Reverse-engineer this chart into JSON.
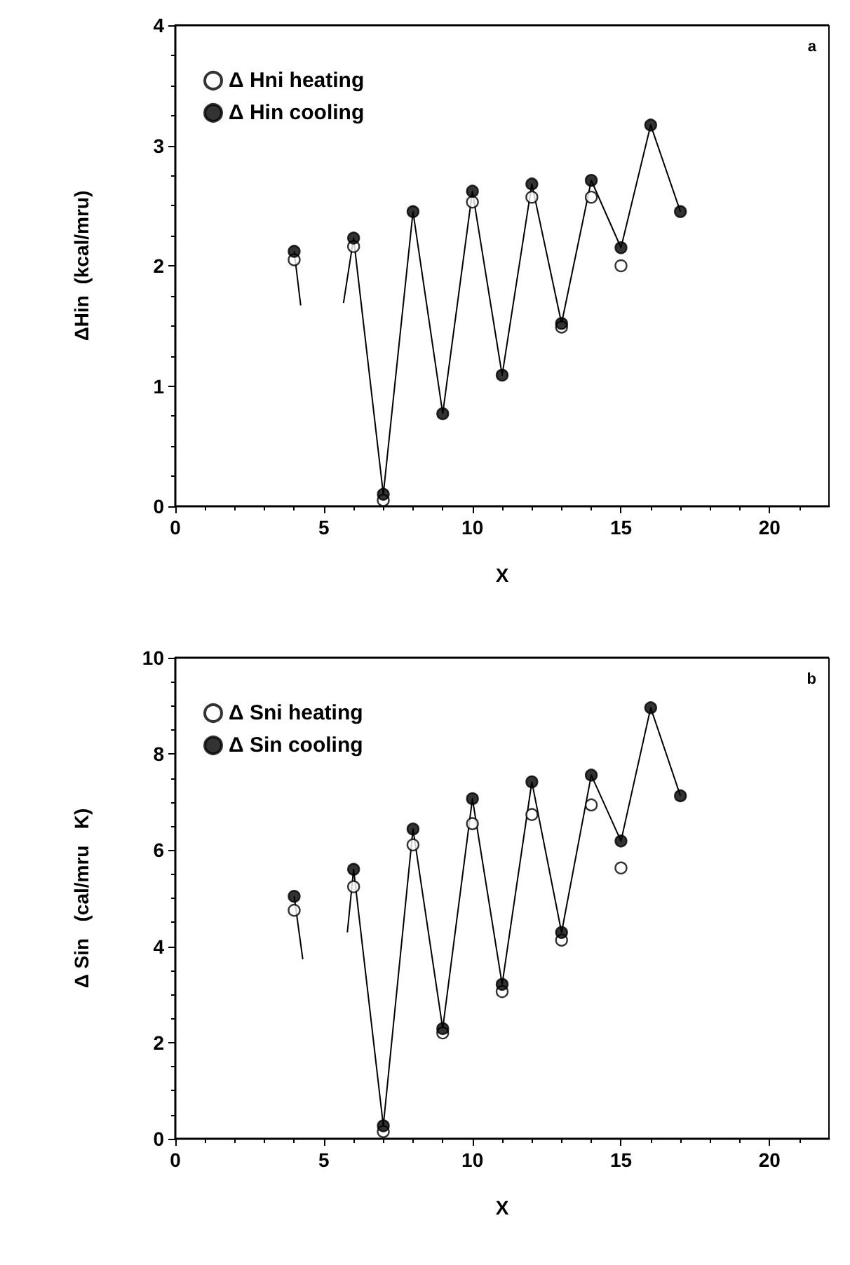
{
  "chart_data": [
    {
      "type": "scatter",
      "xlabel": "X",
      "ylabel": "ΔHin  (kcal/mru)",
      "annotations": [
        "a"
      ],
      "xlim": [
        0,
        22
      ],
      "xticks": [
        0,
        5,
        10,
        15,
        20
      ],
      "ylim": [
        0,
        4
      ],
      "yticks": [
        0,
        1,
        2,
        3,
        4
      ],
      "grid": false,
      "legend": "top left",
      "marker": "circle",
      "x": [
        4,
        6,
        7,
        8,
        9,
        10,
        11,
        12,
        13,
        14,
        15,
        16,
        17
      ],
      "series": [
        {
          "type": "line",
          "color": "#000000",
          "line_style": "solid",
          "marker": "none",
          "x": [
            4,
            4.22,
            5,
            5.66,
            6,
            7,
            8,
            9,
            10,
            11,
            12,
            13,
            14,
            15,
            16,
            17
          ],
          "values": [
            2.12,
            1.67,
            null,
            1.69,
            2.23,
            0.1,
            2.45,
            0.77,
            2.62,
            1.09,
            2.68,
            1.52,
            2.71,
            2.15,
            3.17,
            2.45
          ]
        },
        {
          "name": "Δ Hin cooling",
          "color": "#000000",
          "values": [
            2.12,
            2.23,
            0.1,
            2.45,
            0.77,
            2.62,
            1.09,
            2.68,
            1.52,
            2.71,
            2.15,
            3.17,
            2.45
          ]
        },
        {
          "name": "Δ Hni heating",
          "color": "#ffffff",
          "values": [
            2.05,
            2.16,
            0.05,
            null,
            null,
            2.53,
            null,
            2.57,
            1.49,
            2.57,
            2.0,
            null,
            null
          ]
        }
      ]
    },
    {
      "type": "scatter",
      "xlabel": "X",
      "ylabel": "Δ Sin   (cal/mru   K)",
      "annotations": [
        "b"
      ],
      "xlim": [
        0,
        22
      ],
      "xticks": [
        0,
        5,
        10,
        15,
        20
      ],
      "ylim": [
        0,
        10
      ],
      "yticks": [
        0,
        2,
        4,
        6,
        8,
        10
      ],
      "grid": false,
      "legend": "top left",
      "marker": "circle",
      "x": [
        4,
        6,
        7,
        8,
        9,
        10,
        11,
        12,
        13,
        14,
        15,
        16,
        17
      ],
      "series": [
        {
          "type": "line",
          "color": "#000000",
          "line_style": "solid",
          "marker": "none",
          "x": [
            4,
            4.29,
            5,
            5.79,
            6,
            7,
            8,
            9,
            10,
            11,
            12,
            13,
            14,
            15,
            16,
            17
          ],
          "values": [
            5.04,
            3.73,
            null,
            4.29,
            5.6,
            0.27,
            6.44,
            2.29,
            7.07,
            3.21,
            7.42,
            4.29,
            7.56,
            6.19,
            8.96,
            7.13
          ]
        },
        {
          "name": "Δ Sin cooling",
          "color": "#000000",
          "values": [
            5.04,
            5.6,
            0.27,
            6.44,
            2.29,
            7.07,
            3.21,
            7.42,
            4.29,
            7.56,
            6.19,
            8.96,
            7.13
          ]
        },
        {
          "name": "Δ Sni heating",
          "color": "#ffffff",
          "values": [
            4.75,
            5.24,
            0.15,
            6.11,
            2.2,
            6.55,
            3.06,
            6.74,
            4.13,
            6.94,
            5.63,
            null,
            null
          ]
        }
      ]
    }
  ]
}
